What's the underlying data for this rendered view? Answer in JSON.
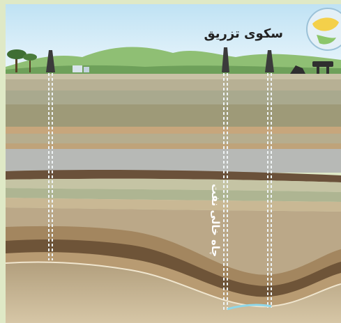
{
  "diagram": {
    "title": "سکوی تزریق",
    "well_label": "چاه خالی نفت"
  },
  "icons": {
    "platform": "injection-platform-icon",
    "derricks": "oil-derrick-icon",
    "tree": "tree-icon",
    "globe": "globe-icon"
  }
}
